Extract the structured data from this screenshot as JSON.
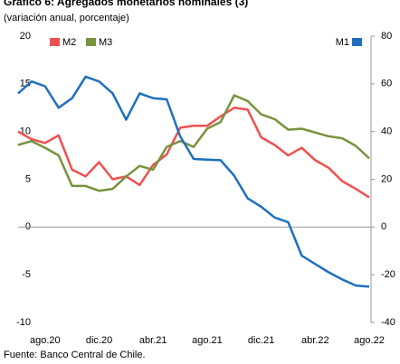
{
  "chart_data": {
    "type": "line",
    "title": "Gráfico 6: Agregados monetarios nominales (3)",
    "subtitle": "(variación anual, porcentaje)",
    "source": "Fuente: Banco Central de Chile.",
    "categories": [
      null,
      null,
      "ago.20",
      null,
      null,
      null,
      "dic.20",
      null,
      null,
      null,
      "abr.21",
      null,
      null,
      null,
      "ago.21",
      null,
      null,
      null,
      "dic.21",
      null,
      null,
      null,
      "abr.22",
      null,
      null,
      null,
      "ago.22"
    ],
    "series": [
      {
        "name": "M2",
        "color": "#f0504f",
        "values": [
          10,
          9.2,
          8.8,
          9.6,
          6,
          5.3,
          6.8,
          5,
          5.3,
          4.4,
          6.5,
          7.6,
          10.4,
          10.6,
          10.6,
          11.6,
          12.5,
          12.3,
          9.4,
          8.6,
          7.5,
          8.3,
          7,
          6.2,
          4.8,
          4,
          3.1
        ]
      },
      {
        "name": "M3",
        "color": "#77933c",
        "values": [
          8.6,
          9,
          8.3,
          7.5,
          4.3,
          4.3,
          3.8,
          4,
          5.3,
          6.4,
          6,
          8.4,
          9,
          8.4,
          10.3,
          11,
          13.8,
          13.2,
          11.8,
          11.3,
          10.2,
          10.3,
          9.9,
          9.5,
          9.3,
          8.5,
          7.2
        ]
      },
      {
        "name": "M1",
        "color": "#1f6fbf",
        "axis": "y2",
        "values": [
          56,
          61,
          59,
          50,
          54,
          63,
          61,
          56,
          45,
          56,
          54,
          53.5,
          38,
          28.5,
          28.2,
          28,
          21.5,
          12,
          8.5,
          4,
          2,
          -12,
          -15.5,
          -19,
          -22,
          -24.5,
          -25
        ]
      }
    ],
    "ylim": [
      -10,
      20
    ],
    "yticks": [
      -10,
      -5,
      0,
      5,
      10,
      15,
      20
    ],
    "y2lim": [
      -40,
      80
    ],
    "y2ticks": [
      -40,
      -20,
      0,
      20,
      40,
      60,
      80
    ]
  }
}
